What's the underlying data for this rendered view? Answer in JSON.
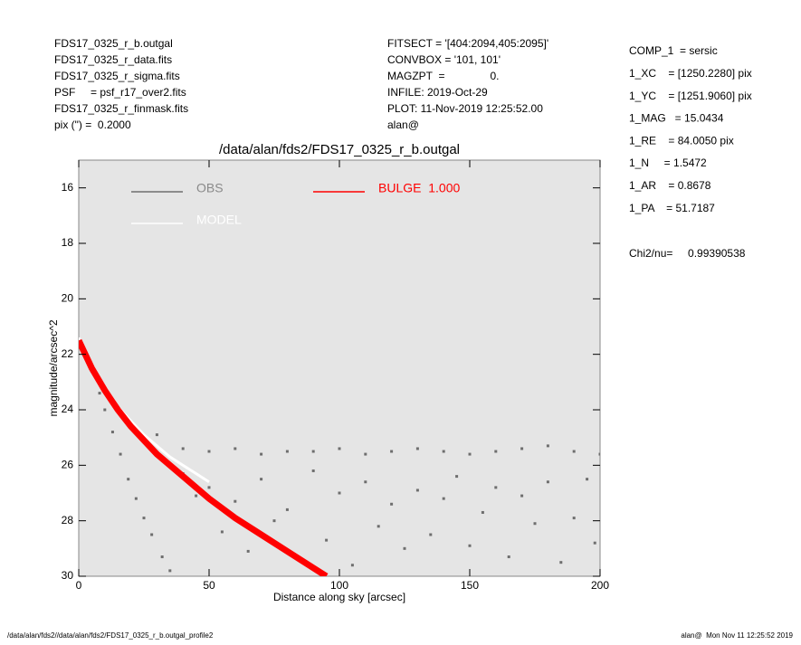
{
  "header": {
    "left": [
      "FDS17_0325_r_b.outgal",
      "FDS17_0325_r_data.fits",
      "FDS17_0325_r_sigma.fits",
      "PSF     = psf_r17_over2.fits",
      "FDS17_0325_r_finmask.fits",
      "pix (\") =  0.2000"
    ],
    "middle": [
      "FITSECT = '[404:2094,405:2095]'",
      "CONVBOX = '101, 101'",
      "MAGZPT  =               0.",
      "INFILE: 2019-Oct-29",
      "PLOT: 11-Nov-2019 12:25:52.00",
      "alan@"
    ],
    "right": [
      "COMP_1  = sersic",
      "1_XC    = [1250.2280] pix",
      "1_YC    = [1251.9060] pix",
      "1_MAG   = 15.0434",
      "1_RE    = 84.0050 pix",
      "1_N     = 1.5472",
      "1_AR    = 0.8678",
      "1_PA    = 51.7187"
    ],
    "chi2": "Chi2/nu=     0.99390538"
  },
  "footer": {
    "left": "/data/alan/fds2//data/alan/fds2/FDS17_0325_r_b.outgal_profile2",
    "right": "alan@  Mon Nov 11 12:25:52 2019"
  },
  "chart_data": {
    "type": "scatter",
    "title": "/data/alan/fds2/FDS17_0325_r_b.outgal",
    "xlabel": "Distance along sky [arcsec]",
    "ylabel": "magnitude/arcsec^2",
    "xlim": [
      0,
      200
    ],
    "ylim": [
      15,
      30
    ],
    "y_inverted": true,
    "xticks": [
      0,
      50,
      100,
      150,
      200
    ],
    "yticks": [
      16,
      18,
      20,
      22,
      24,
      26,
      28,
      30
    ],
    "series": [
      {
        "name": "OBS",
        "color": "#6e6e6e",
        "style": "points",
        "x": [
          2,
          5,
          8,
          10,
          13,
          16,
          19,
          22,
          25,
          28,
          32,
          35,
          30,
          40,
          50,
          60,
          70,
          80,
          90,
          100,
          110,
          120,
          130,
          140,
          150,
          160,
          170,
          180,
          190,
          200,
          40,
          45,
          50,
          55,
          60,
          65,
          70,
          75,
          80,
          85,
          90,
          95,
          100,
          105,
          110,
          115,
          120,
          125,
          130,
          135,
          140,
          145,
          150,
          155,
          160,
          165,
          170,
          175,
          180,
          185,
          190,
          195,
          198
        ],
        "y": [
          21.8,
          22.6,
          23.4,
          24.0,
          24.8,
          25.6,
          26.5,
          27.2,
          27.9,
          28.5,
          29.3,
          29.8,
          24.9,
          25.4,
          25.5,
          25.4,
          25.6,
          25.5,
          25.5,
          25.4,
          25.6,
          25.5,
          25.4,
          25.5,
          25.6,
          25.5,
          25.4,
          25.3,
          25.5,
          25.6,
          26.3,
          27.1,
          26.8,
          28.4,
          27.3,
          29.1,
          26.5,
          28.0,
          27.6,
          29.4,
          26.2,
          28.7,
          27.0,
          29.6,
          26.6,
          28.2,
          27.4,
          29.0,
          26.9,
          28.5,
          27.2,
          26.4,
          28.9,
          27.7,
          26.8,
          29.3,
          27.1,
          28.1,
          26.6,
          29.5,
          27.9,
          26.5,
          28.8
        ]
      },
      {
        "name": "MODEL",
        "color": "#ffffff",
        "style": "line",
        "x": [
          0,
          5,
          10,
          15,
          20,
          25,
          30,
          35,
          40,
          45,
          50
        ],
        "y": [
          21.4,
          22.4,
          23.2,
          23.9,
          24.4,
          24.9,
          25.3,
          25.7,
          26.0,
          26.3,
          26.6
        ]
      },
      {
        "name": "BULGE  1.000",
        "color": "#ff0000",
        "style": "line",
        "x": [
          0,
          5,
          10,
          15,
          20,
          30,
          40,
          50,
          60,
          70,
          80,
          90,
          95
        ],
        "y": [
          21.5,
          22.5,
          23.3,
          24.0,
          24.6,
          25.6,
          26.4,
          27.2,
          27.9,
          28.5,
          29.1,
          29.7,
          30.0
        ]
      }
    ]
  }
}
